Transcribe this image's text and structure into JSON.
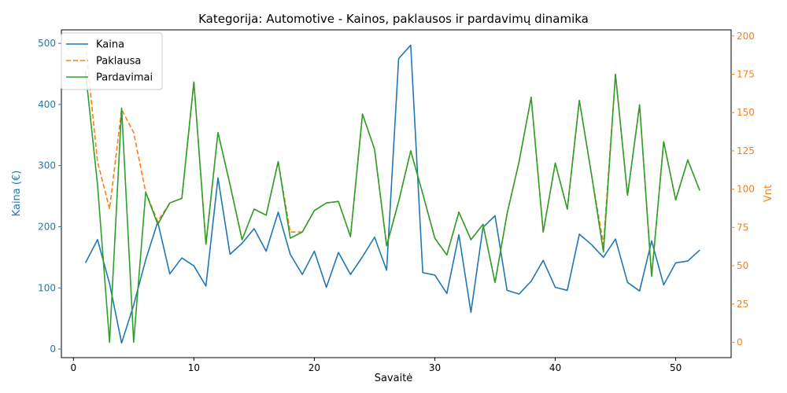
{
  "chart_data": {
    "type": "line",
    "title": "Kategorija: Automotive - Kainos, paklausos ir pardavimų dinamika",
    "xlabel": "Savaitė",
    "ylabel_left": "Kaina (€)",
    "ylabel_right": "Vnt",
    "xlim": [
      -1,
      54.6
    ],
    "ylim_left": [
      -14,
      522
    ],
    "ylim_right": [
      -10,
      204
    ],
    "x_ticks": [
      0,
      10,
      20,
      30,
      40,
      50
    ],
    "y_ticks_left": [
      0,
      100,
      200,
      300,
      400,
      500
    ],
    "y_ticks_right": [
      0,
      25,
      50,
      75,
      100,
      125,
      150,
      175,
      200
    ],
    "grid": false,
    "legend_position": "top-left",
    "colors": {
      "left_axis": "#1f77b4",
      "right_axis": "#ff7f0e"
    },
    "x": [
      1,
      2,
      3,
      4,
      5,
      6,
      7,
      8,
      9,
      10,
      11,
      12,
      13,
      14,
      15,
      16,
      17,
      18,
      19,
      20,
      21,
      22,
      23,
      24,
      25,
      26,
      27,
      28,
      29,
      30,
      31,
      32,
      33,
      34,
      35,
      36,
      37,
      38,
      39,
      40,
      41,
      42,
      43,
      44,
      45,
      46,
      47,
      48,
      49,
      50,
      51,
      52
    ],
    "series": [
      {
        "name": "Kaina",
        "axis": "left",
        "color": "#1f77b4",
        "dash": "solid",
        "values": [
          141,
          179,
          107,
          10,
          72,
          146,
          208,
          123,
          149,
          136,
          103,
          280,
          155,
          173,
          197,
          160,
          224,
          155,
          122,
          160,
          101,
          158,
          122,
          151,
          183,
          129,
          475,
          497,
          125,
          121,
          91,
          187,
          60,
          199,
          218,
          96,
          90,
          111,
          145,
          101,
          96,
          188,
          171,
          150,
          180,
          109,
          95,
          177,
          105,
          141,
          144,
          162
        ]
      },
      {
        "name": "Paklausa",
        "axis": "right",
        "color": "#ff7f0e",
        "dash": "dashed",
        "values": [
          195,
          118,
          87,
          152,
          137,
          98,
          79,
          91,
          94,
          170,
          64,
          137,
          103,
          67,
          87,
          83,
          118,
          72,
          72,
          86,
          91,
          92,
          69,
          149,
          126,
          63,
          92,
          125,
          97,
          68,
          57,
          85,
          67,
          77,
          39,
          84,
          118,
          160,
          72,
          117,
          87,
          158,
          110,
          64,
          175,
          96,
          155,
          43,
          131,
          93,
          119,
          99
        ]
      },
      {
        "name": "Pardavimai",
        "axis": "right",
        "color": "#2ca02c",
        "dash": "solid",
        "values": [
          177,
          103,
          0,
          153,
          0,
          98,
          77,
          91,
          94,
          170,
          64,
          137,
          103,
          67,
          87,
          83,
          118,
          68,
          72,
          86,
          91,
          92,
          69,
          149,
          126,
          63,
          92,
          125,
          97,
          68,
          57,
          85,
          67,
          77,
          39,
          84,
          118,
          160,
          72,
          117,
          87,
          158,
          110,
          59,
          175,
          96,
          155,
          43,
          131,
          93,
          119,
          99
        ]
      }
    ]
  }
}
